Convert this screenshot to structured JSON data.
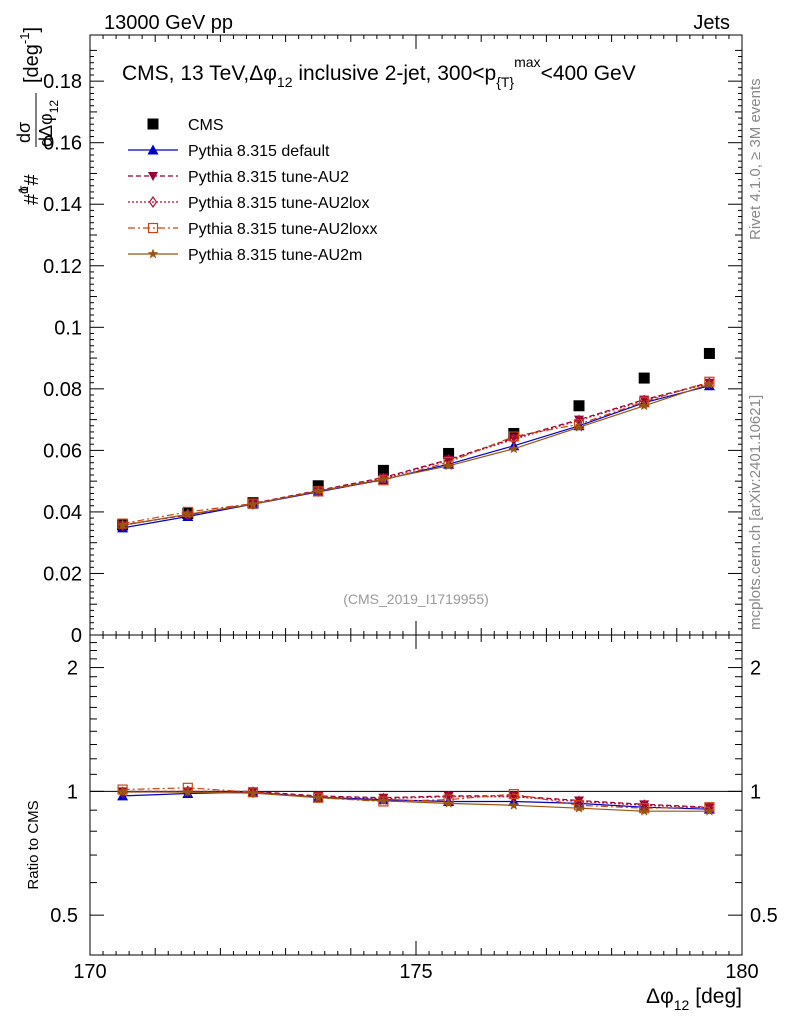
{
  "header": {
    "beam": "13000 GeV pp",
    "process": "Jets",
    "rivet": "Rivet 4.1.0, ≥ 3M events",
    "mcplots": "mcplots.cern.ch [arXiv:2401.10621]",
    "analysis_tag": "(CMS_2019_I1719955)"
  },
  "colors": {
    "CMS": "#000000",
    "default": "#0000cc",
    "AU2": "#990033",
    "AU2lox": "#aa1133",
    "AU2loxx": "#cc4411",
    "AU2m": "#995511"
  },
  "chart_data": [
    {
      "type": "scatter",
      "panel": "main",
      "title": "CMS, 13 TeV, Δφ₁₂ inclusive 2-jet, 300<p{T}max<400 GeV",
      "title_parts": {
        "prefix": "CMS, 13 TeV,",
        "delta_phi": "Δφ",
        "sub12": "12",
        "mid": " inclusive 2-jet, 300<p",
        "sub_t": "{T}",
        "sup_max": "max",
        "suffix": "<400 GeV"
      },
      "xlabel": "Δφ₁₂ [deg]",
      "xlabel_parts": {
        "main": "Δφ",
        "sub": "12",
        "unit": "[deg]"
      },
      "ylabel": "#1/σ #dσ/dΔφ₁₂ [deg⁻¹]",
      "ylabel_parts": {
        "hash1": "#",
        "one": "1",
        "sigma": "σ",
        "hash2": "#",
        "dsigma": "dσ",
        "dphi": "dΔφ",
        "sub12": "12",
        "unit": "[deg",
        "unit_sup": "-1",
        "unit_close": "]"
      },
      "xlim": [
        170,
        180
      ],
      "ylim": [
        0,
        0.195
      ],
      "xticks": [
        "170",
        "175",
        "180"
      ],
      "yticks": [
        "0",
        "0.02",
        "0.04",
        "0.06",
        "0.08",
        "0.1",
        "0.12",
        "0.14",
        "0.16",
        "0.18"
      ],
      "x": [
        170.5,
        171.5,
        172.5,
        173.5,
        174.5,
        175.5,
        176.5,
        177.5,
        178.5,
        179.5
      ],
      "series": [
        {
          "key": "CMS",
          "name": "CMS",
          "marker": "square",
          "line": "none",
          "values": [
            0.0358,
            0.0395,
            0.043,
            0.0485,
            0.0535,
            0.059,
            0.0655,
            0.0745,
            0.0835,
            0.0915
          ]
        },
        {
          "key": "default",
          "name": "Pythia 8.315 default",
          "marker": "triangle-up",
          "line": "solid",
          "values": [
            0.0348,
            0.0385,
            0.0425,
            0.0465,
            0.0505,
            0.0555,
            0.0615,
            0.068,
            0.0755,
            0.081
          ]
        },
        {
          "key": "AU2",
          "name": "Pythia 8.315 tune-AU2",
          "marker": "triangle-down",
          "line": "dashed",
          "values": [
            0.0358,
            0.039,
            0.0428,
            0.047,
            0.0512,
            0.057,
            0.064,
            0.07,
            0.0765,
            0.082
          ]
        },
        {
          "key": "AU2lox",
          "name": "Pythia 8.315 tune-AU2lox",
          "marker": "diamond-open",
          "line": "dotted",
          "values": [
            0.0356,
            0.0392,
            0.0426,
            0.0468,
            0.0508,
            0.0568,
            0.0636,
            0.0697,
            0.0762,
            0.0818
          ]
        },
        {
          "key": "AU2loxx",
          "name": "Pythia 8.315 tune-AU2loxx",
          "marker": "square-open",
          "line": "dashdot",
          "values": [
            0.0362,
            0.04,
            0.0427,
            0.0467,
            0.0503,
            0.0562,
            0.0645,
            0.0685,
            0.0758,
            0.0823
          ]
        },
        {
          "key": "AU2m",
          "name": "Pythia 8.315 tune-AU2m",
          "marker": "star",
          "line": "solid",
          "values": [
            0.0357,
            0.0392,
            0.0425,
            0.0468,
            0.0506,
            0.055,
            0.0605,
            0.0675,
            0.0745,
            0.0815
          ]
        }
      ]
    },
    {
      "type": "line",
      "panel": "ratio",
      "ylabel": "Ratio to CMS",
      "scale": "log",
      "ylim": [
        0.4,
        2.4
      ],
      "yticks": [
        "0.5",
        "1",
        "2"
      ],
      "x": [
        170.5,
        171.5,
        172.5,
        173.5,
        174.5,
        175.5,
        176.5,
        177.5,
        178.5,
        179.5
      ],
      "series": [
        {
          "key": "default",
          "name": "Pythia 8.315 default",
          "values": [
            0.975,
            0.988,
            0.995,
            0.967,
            0.955,
            0.945,
            0.945,
            0.935,
            0.915,
            0.905
          ]
        },
        {
          "key": "AU2",
          "name": "Pythia 8.315 tune-AU2",
          "values": [
            1.0,
            1.0,
            1.0,
            0.975,
            0.965,
            0.975,
            0.975,
            0.95,
            0.93,
            0.915
          ]
        },
        {
          "key": "AU2lox",
          "name": "Pythia 8.315 tune-AU2lox",
          "values": [
            0.995,
            1.0,
            0.995,
            0.97,
            0.96,
            0.97,
            0.97,
            0.945,
            0.925,
            0.912
          ]
        },
        {
          "key": "AU2loxx",
          "name": "Pythia 8.315 tune-AU2loxx",
          "values": [
            1.01,
            1.02,
            0.995,
            0.965,
            0.945,
            0.955,
            0.985,
            0.925,
            0.91,
            0.915
          ]
        },
        {
          "key": "AU2m",
          "name": "Pythia 8.315 tune-AU2m",
          "values": [
            0.997,
            0.995,
            0.99,
            0.965,
            0.948,
            0.935,
            0.925,
            0.91,
            0.895,
            0.895
          ]
        }
      ]
    }
  ]
}
